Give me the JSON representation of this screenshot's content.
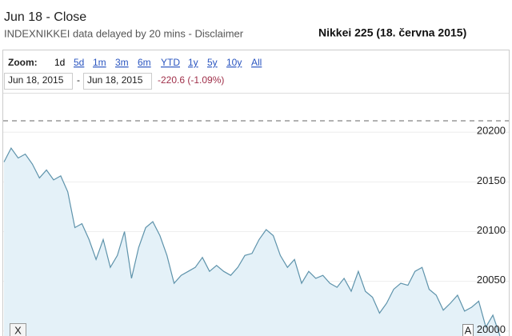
{
  "header": {
    "close_label": "Jun 18 - Close",
    "source": "INDEXNIKKEI data delayed by 20 mins - Disclaimer",
    "caption": "Nikkei 225 (18. června 2015)"
  },
  "toolbar": {
    "zoom_label": "Zoom:",
    "zoom_options": [
      "1d",
      "5d",
      "1m",
      "3m",
      "6m",
      "YTD",
      "1y",
      "5y",
      "10y",
      "All"
    ],
    "range_start": "Jun 18, 2015",
    "range_sep": "-",
    "range_end": "Jun 18, 2015",
    "change": "-220.6 (-1.09%)"
  },
  "chart_data": {
    "type": "area",
    "values": [
      20170,
      20184,
      20174,
      20178,
      20168,
      20154,
      20162,
      20152,
      20156,
      20140,
      20104,
      20108,
      20092,
      20072,
      20092,
      20064,
      20076,
      20100,
      20053,
      20084,
      20104,
      20110,
      20096,
      20076,
      20048,
      20056,
      20060,
      20064,
      20074,
      20060,
      20066,
      20060,
      20056,
      20064,
      20076,
      20078,
      20092,
      20102,
      20096,
      20076,
      20064,
      20072,
      20048,
      20060,
      20053,
      20056,
      20048,
      20044,
      20053,
      20040,
      20060,
      20040,
      20034,
      20018,
      20028,
      20042,
      20048,
      20046,
      20060,
      20064,
      20042,
      20036,
      20021,
      20028,
      20036,
      20020,
      20024,
      20030,
      20004,
      20016,
      19995
    ],
    "color": "#5e93ab",
    "fill": "#e4f1f8",
    "ylim": [
      19995,
      20238
    ],
    "yticks": [
      20200,
      20150,
      20100,
      20050,
      20000
    ],
    "grid": true,
    "reference_line": 20211.4,
    "annotations": [
      "A"
    ]
  },
  "controls": {
    "close_button": "X"
  }
}
